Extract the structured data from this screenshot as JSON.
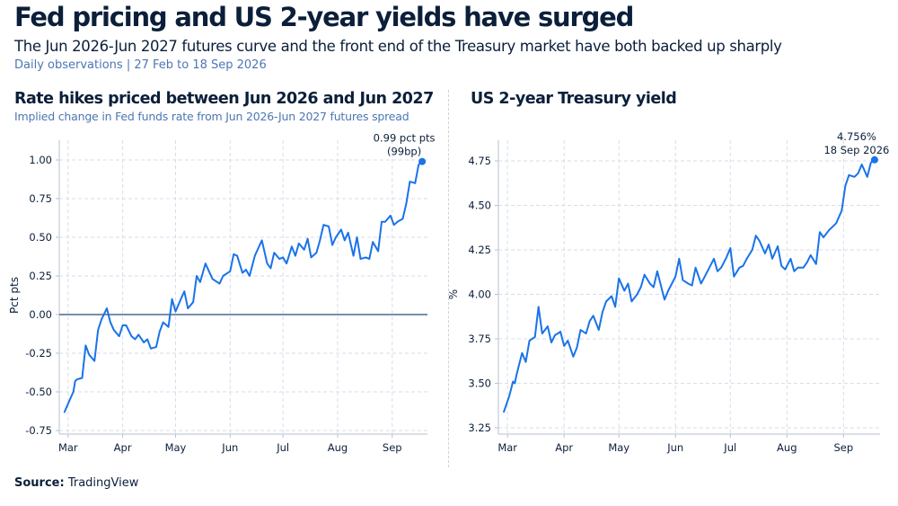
{
  "header": {
    "title": "Fed pricing and US 2-year yields have surged",
    "subtitle": "The Jun 2026-Jun 2027 futures curve and the front end of the Treasury market have both backed up sharply",
    "note": "Daily observations | 27 Feb to 18 Sep 2026"
  },
  "footer": {
    "source_label": "Source:",
    "source_value": "TradingView"
  },
  "chart_data": [
    {
      "type": "line",
      "title": "Rate hikes priced between Jun 2026 and Jun 2027",
      "subtitle": "Implied change in Fed funds rate from Jun 2026-Jun 2027 futures spread",
      "ylabel": "Pct pts",
      "xlabel": "",
      "ylim": [
        -0.75,
        1.0
      ],
      "yticks": [
        -0.75,
        -0.5,
        -0.25,
        0,
        0.25,
        0.5,
        0.75,
        1.0
      ],
      "ytick_labels": [
        "-0.75",
        "-0.50",
        "-0.25",
        "0.00",
        "0.25",
        "0.50",
        "0.75",
        "1.00"
      ],
      "xlim": [
        "2026-02-24",
        "2026-09-21"
      ],
      "xticks": [
        "2026-03-01",
        "2026-04-01",
        "2026-05-01",
        "2026-06-01",
        "2026-07-01",
        "2026-08-01",
        "2026-09-01"
      ],
      "xtick_labels": [
        "Mar",
        "Apr",
        "May",
        "Jun",
        "Jul",
        "Aug",
        "Sep"
      ],
      "zero_line": true,
      "grid": "dashed",
      "line_color": "#1a73e8",
      "annotation": {
        "line1": "0.99 pct pts",
        "line2": "(99bp)"
      },
      "series": [
        {
          "x": [
            "2026-02-27",
            "2026-03-02",
            "2026-03-04",
            "2026-03-05",
            "2026-03-06",
            "2026-03-09",
            "2026-03-11",
            "2026-03-13",
            "2026-03-16",
            "2026-03-18",
            "2026-03-20",
            "2026-03-23",
            "2026-03-25",
            "2026-03-27",
            "2026-03-30",
            "2026-04-01",
            "2026-04-03",
            "2026-04-06",
            "2026-04-08",
            "2026-04-10",
            "2026-04-13",
            "2026-04-15",
            "2026-04-17",
            "2026-04-20",
            "2026-04-22",
            "2026-04-24",
            "2026-04-27",
            "2026-04-29",
            "2026-05-01",
            "2026-05-04",
            "2026-05-06",
            "2026-05-08",
            "2026-05-11",
            "2026-05-13",
            "2026-05-15",
            "2026-05-18",
            "2026-05-20",
            "2026-05-22",
            "2026-05-26",
            "2026-05-28",
            "2026-06-01",
            "2026-06-03",
            "2026-06-05",
            "2026-06-08",
            "2026-06-10",
            "2026-06-12",
            "2026-06-15",
            "2026-06-17",
            "2026-06-19",
            "2026-06-22",
            "2026-06-24",
            "2026-06-26",
            "2026-06-29",
            "2026-07-01",
            "2026-07-03",
            "2026-07-06",
            "2026-07-08",
            "2026-07-10",
            "2026-07-13",
            "2026-07-15",
            "2026-07-17",
            "2026-07-20",
            "2026-07-22",
            "2026-07-24",
            "2026-07-27",
            "2026-07-29",
            "2026-07-31",
            "2026-08-03",
            "2026-08-05",
            "2026-08-07",
            "2026-08-10",
            "2026-08-12",
            "2026-08-14",
            "2026-08-17",
            "2026-08-19",
            "2026-08-21",
            "2026-08-24",
            "2026-08-26",
            "2026-08-28",
            "2026-08-31",
            "2026-09-02",
            "2026-09-04",
            "2026-09-07",
            "2026-09-09",
            "2026-09-11",
            "2026-09-14",
            "2026-09-16",
            "2026-09-18"
          ],
          "y": [
            -0.63,
            -0.55,
            -0.5,
            -0.43,
            -0.42,
            -0.41,
            -0.2,
            -0.26,
            -0.3,
            -0.1,
            -0.03,
            0.04,
            -0.05,
            -0.1,
            -0.14,
            -0.07,
            -0.07,
            -0.14,
            -0.16,
            -0.13,
            -0.18,
            -0.16,
            -0.22,
            -0.21,
            -0.11,
            -0.05,
            -0.08,
            0.1,
            0.02,
            0.1,
            0.15,
            0.04,
            0.08,
            0.25,
            0.21,
            0.33,
            0.28,
            0.23,
            0.2,
            0.25,
            0.28,
            0.39,
            0.38,
            0.27,
            0.29,
            0.25,
            0.38,
            0.43,
            0.48,
            0.33,
            0.3,
            0.4,
            0.36,
            0.37,
            0.33,
            0.44,
            0.38,
            0.46,
            0.42,
            0.49,
            0.37,
            0.4,
            0.48,
            0.58,
            0.57,
            0.45,
            0.5,
            0.55,
            0.48,
            0.53,
            0.38,
            0.5,
            0.36,
            0.37,
            0.36,
            0.47,
            0.41,
            0.6,
            0.6,
            0.64,
            0.58,
            0.6,
            0.62,
            0.72,
            0.86,
            0.85,
            0.97,
            0.99
          ]
        }
      ]
    },
    {
      "type": "line",
      "title": "US 2-year Treasury yield",
      "subtitle": "",
      "ylabel": "%",
      "xlabel": "",
      "ylim": [
        3.25,
        4.75
      ],
      "yticks": [
        3.25,
        3.5,
        3.75,
        4.0,
        4.25,
        4.5,
        4.75
      ],
      "ytick_labels": [
        "3.25",
        "3.50",
        "3.75",
        "4.00",
        "4.25",
        "4.50",
        "4.75"
      ],
      "xlim": [
        "2026-02-24",
        "2026-09-21"
      ],
      "xticks": [
        "2026-03-01",
        "2026-04-01",
        "2026-05-01",
        "2026-06-01",
        "2026-07-01",
        "2026-08-01",
        "2026-09-01"
      ],
      "xtick_labels": [
        "Mar",
        "Apr",
        "May",
        "Jun",
        "Jul",
        "Aug",
        "Sep"
      ],
      "zero_line": false,
      "grid": "dashed",
      "line_color": "#1a73e8",
      "annotation": {
        "line1": "4.756%",
        "line2": "18 Sep 2026"
      },
      "series": [
        {
          "x": [
            "2026-02-27",
            "2026-03-02",
            "2026-03-04",
            "2026-03-05",
            "2026-03-06",
            "2026-03-09",
            "2026-03-11",
            "2026-03-13",
            "2026-03-16",
            "2026-03-18",
            "2026-03-20",
            "2026-03-23",
            "2026-03-25",
            "2026-03-27",
            "2026-03-30",
            "2026-04-01",
            "2026-04-03",
            "2026-04-06",
            "2026-04-08",
            "2026-04-10",
            "2026-04-13",
            "2026-04-15",
            "2026-04-17",
            "2026-04-20",
            "2026-04-22",
            "2026-04-24",
            "2026-04-27",
            "2026-04-29",
            "2026-05-01",
            "2026-05-04",
            "2026-05-06",
            "2026-05-08",
            "2026-05-11",
            "2026-05-13",
            "2026-05-15",
            "2026-05-18",
            "2026-05-20",
            "2026-05-22",
            "2026-05-26",
            "2026-05-28",
            "2026-06-01",
            "2026-06-03",
            "2026-06-05",
            "2026-06-08",
            "2026-06-10",
            "2026-06-12",
            "2026-06-15",
            "2026-06-17",
            "2026-06-19",
            "2026-06-22",
            "2026-06-24",
            "2026-06-26",
            "2026-06-29",
            "2026-07-01",
            "2026-07-03",
            "2026-07-06",
            "2026-07-08",
            "2026-07-10",
            "2026-07-13",
            "2026-07-15",
            "2026-07-17",
            "2026-07-20",
            "2026-07-22",
            "2026-07-24",
            "2026-07-27",
            "2026-07-29",
            "2026-07-31",
            "2026-08-03",
            "2026-08-05",
            "2026-08-07",
            "2026-08-10",
            "2026-08-12",
            "2026-08-14",
            "2026-08-17",
            "2026-08-19",
            "2026-08-21",
            "2026-08-24",
            "2026-08-26",
            "2026-08-28",
            "2026-08-31",
            "2026-09-02",
            "2026-09-04",
            "2026-09-07",
            "2026-09-09",
            "2026-09-11",
            "2026-09-14",
            "2026-09-16",
            "2026-09-18"
          ],
          "y": [
            3.34,
            3.43,
            3.51,
            3.5,
            3.55,
            3.67,
            3.62,
            3.74,
            3.76,
            3.93,
            3.78,
            3.82,
            3.73,
            3.77,
            3.79,
            3.71,
            3.74,
            3.65,
            3.7,
            3.8,
            3.78,
            3.85,
            3.88,
            3.8,
            3.9,
            3.96,
            3.99,
            3.93,
            4.09,
            4.02,
            4.06,
            3.96,
            4.0,
            4.04,
            4.11,
            4.06,
            4.04,
            4.13,
            3.97,
            4.02,
            4.1,
            4.2,
            4.08,
            4.06,
            4.05,
            4.15,
            4.06,
            4.1,
            4.14,
            4.2,
            4.13,
            4.15,
            4.21,
            4.26,
            4.1,
            4.15,
            4.16,
            4.2,
            4.25,
            4.33,
            4.3,
            4.23,
            4.28,
            4.2,
            4.27,
            4.16,
            4.14,
            4.2,
            4.13,
            4.15,
            4.15,
            4.18,
            4.22,
            4.17,
            4.35,
            4.32,
            4.36,
            4.38,
            4.4,
            4.47,
            4.61,
            4.67,
            4.66,
            4.68,
            4.73,
            4.66,
            4.74,
            4.756
          ]
        }
      ]
    }
  ]
}
